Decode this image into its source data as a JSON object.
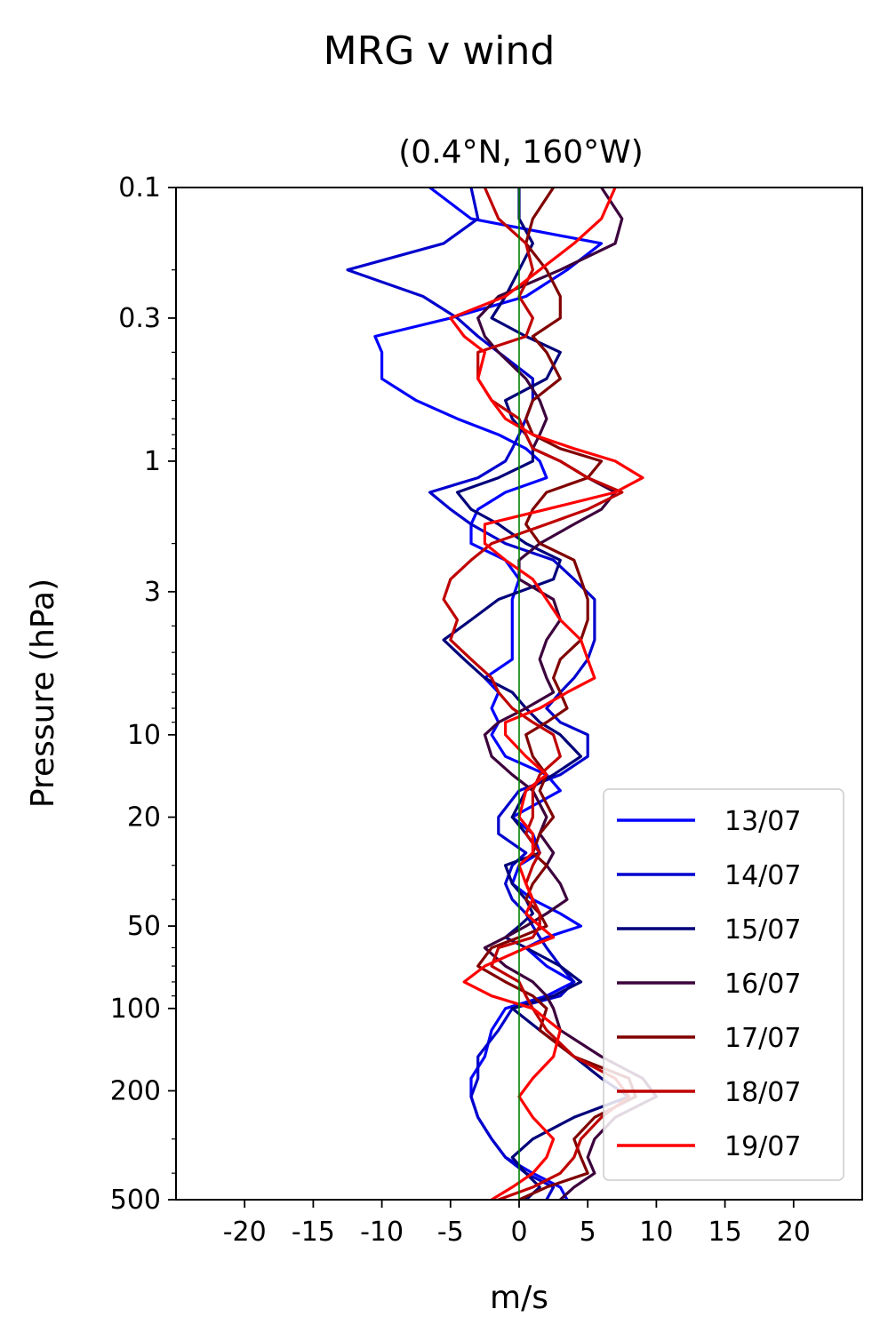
{
  "chart_data": {
    "type": "line",
    "suptitle": "MRG v wind",
    "title": "(0.4°N, 160°W)",
    "xlabel": "m/s",
    "ylabel": "Pressure (hPa)",
    "xlim": [
      -25,
      25
    ],
    "ylim": [
      500,
      0.1
    ],
    "yscale": "log",
    "xticks": [
      -20,
      -15,
      -10,
      -5,
      0,
      5,
      10,
      15,
      20
    ],
    "xtick_labels": [
      "-20",
      "-15",
      "-10",
      "-5",
      "0",
      "5",
      "10",
      "15",
      "20"
    ],
    "yticks": [
      0.1,
      0.3,
      1,
      3,
      10,
      20,
      50,
      100,
      200,
      500
    ],
    "ytick_labels": [
      "0.1",
      "0.3",
      "1",
      "3",
      "10",
      "20",
      "50",
      "100",
      "200",
      "500"
    ],
    "zero_line_color": "#008000",
    "grid": false,
    "legend_position": "lower-right",
    "series": [
      {
        "name": "13/07",
        "color": "#0000ff",
        "p": [
          0.1,
          0.13,
          0.16,
          0.2,
          0.25,
          0.3,
          0.35,
          0.4,
          0.5,
          0.6,
          0.7,
          0.8,
          0.9,
          1.0,
          1.15,
          1.3,
          1.5,
          1.7,
          2.0,
          2.3,
          2.7,
          3.2,
          3.8,
          4.5,
          5.3,
          6.2,
          7.0,
          8.0,
          9.0,
          10.0,
          12.0,
          14.0,
          16.0,
          20.0,
          23.0,
          27.0,
          30.0,
          35.0,
          40.0,
          45.0,
          50.0,
          55.0,
          60.0,
          70.0,
          80.0,
          90.0,
          100.0,
          120.0,
          150.0,
          180.0,
          210.0,
          250.0,
          300.0,
          350.0,
          400.0,
          450.0,
          500.0
        ],
        "v": [
          -6.5,
          -3.5,
          6.0,
          3.5,
          0.5,
          -5.0,
          -10.5,
          -10.0,
          -10.0,
          -7.5,
          -4.5,
          -1.5,
          0.5,
          1.5,
          2.0,
          -1.0,
          -3.0,
          -3.5,
          -3.5,
          -1.0,
          0.0,
          -0.5,
          -0.5,
          -0.5,
          -0.5,
          -2.5,
          -1.5,
          -2.0,
          -1.5,
          -2.0,
          -1.0,
          2.0,
          3.0,
          -0.5,
          1.0,
          1.5,
          0.0,
          -0.5,
          1.0,
          3.0,
          4.5,
          2.0,
          0.5,
          2.0,
          4.0,
          2.0,
          -1.0,
          -2.0,
          -2.5,
          -3.5,
          -3.5,
          -3.0,
          -2.0,
          -1.0,
          1.0,
          3.0,
          3.5
        ]
      },
      {
        "name": "14/07",
        "color": "#0000cd",
        "p": [
          0.1,
          0.13,
          0.16,
          0.2,
          0.25,
          0.3,
          0.35,
          0.4,
          0.5,
          0.6,
          0.7,
          0.8,
          0.9,
          1.0,
          1.15,
          1.3,
          1.5,
          1.7,
          2.0,
          2.3,
          2.7,
          3.2,
          3.8,
          4.5,
          5.3,
          6.2,
          7.0,
          8.0,
          9.0,
          10.0,
          12.0,
          14.0,
          16.0,
          20.0,
          23.0,
          27.0,
          30.0,
          35.0,
          40.0,
          45.0,
          50.0,
          55.0,
          60.0,
          70.0,
          80.0,
          90.0,
          100.0,
          120.0,
          150.0,
          180.0,
          210.0,
          250.0,
          300.0,
          350.0,
          400.0,
          450.0,
          500.0
        ],
        "v": [
          -3.5,
          -3.0,
          -5.5,
          -12.5,
          -7.0,
          -4.5,
          -3.0,
          -1.5,
          1.0,
          1.0,
          0.5,
          0.0,
          -0.5,
          -1.0,
          -3.0,
          -6.5,
          -5.0,
          -3.5,
          -1.0,
          2.5,
          4.0,
          5.5,
          5.5,
          5.5,
          5.0,
          4.0,
          3.0,
          2.0,
          3.0,
          5.0,
          5.0,
          3.0,
          0.0,
          -1.5,
          -1.5,
          0.5,
          -0.5,
          -1.0,
          -0.5,
          0.5,
          1.0,
          1.5,
          2.0,
          3.0,
          4.0,
          3.0,
          -0.5,
          -1.5,
          -3.0,
          -3.0,
          -3.5,
          -3.0,
          -2.0,
          -1.0,
          0.5,
          2.5,
          2.0
        ]
      },
      {
        "name": "15/07",
        "color": "#00007a",
        "p": [
          0.1,
          0.13,
          0.16,
          0.2,
          0.25,
          0.3,
          0.35,
          0.4,
          0.5,
          0.6,
          0.7,
          0.8,
          0.9,
          1.0,
          1.15,
          1.3,
          1.5,
          1.7,
          2.0,
          2.3,
          2.7,
          3.2,
          3.8,
          4.5,
          5.3,
          6.2,
          7.0,
          8.0,
          9.0,
          10.0,
          12.0,
          14.0,
          16.0,
          20.0,
          23.0,
          27.0,
          30.0,
          35.0,
          40.0,
          45.0,
          50.0,
          55.0,
          60.0,
          70.0,
          80.0,
          90.0,
          100.0,
          120.0,
          150.0,
          180.0,
          210.0,
          250.0,
          300.0,
          350.0,
          400.0,
          450.0,
          500.0
        ],
        "v": [
          0.0,
          0.0,
          1.0,
          0.0,
          -1.0,
          -2.0,
          0.5,
          3.0,
          2.0,
          -1.0,
          -0.5,
          0.5,
          1.0,
          1.0,
          -1.5,
          -4.5,
          -3.5,
          -1.5,
          0.5,
          3.0,
          2.5,
          -1.5,
          -3.5,
          -5.5,
          -4.0,
          -2.5,
          -0.5,
          0.5,
          1.5,
          3.0,
          4.5,
          2.5,
          0.5,
          -0.5,
          0.5,
          1.5,
          -1.0,
          -0.5,
          0.5,
          1.0,
          0.0,
          -1.0,
          0.5,
          3.0,
          4.5,
          2.5,
          -0.5,
          1.5,
          4.0,
          6.0,
          8.0,
          4.0,
          1.0,
          -0.5,
          0.5,
          1.5,
          0.5
        ]
      },
      {
        "name": "16/07",
        "color": "#3c003c",
        "p": [
          0.1,
          0.13,
          0.16,
          0.2,
          0.25,
          0.3,
          0.35,
          0.4,
          0.5,
          0.6,
          0.7,
          0.8,
          0.9,
          1.0,
          1.15,
          1.3,
          1.5,
          1.7,
          2.0,
          2.3,
          2.7,
          3.2,
          3.8,
          4.5,
          5.3,
          6.2,
          7.0,
          8.0,
          9.0,
          10.0,
          12.0,
          14.0,
          16.0,
          20.0,
          23.0,
          27.0,
          30.0,
          35.0,
          40.0,
          45.0,
          50.0,
          55.0,
          60.0,
          70.0,
          80.0,
          90.0,
          100.0,
          120.0,
          150.0,
          180.0,
          210.0,
          250.0,
          300.0,
          350.0,
          400.0,
          450.0,
          500.0
        ],
        "v": [
          6.0,
          7.5,
          7.0,
          3.0,
          -1.5,
          -3.0,
          -2.5,
          -1.5,
          0.5,
          1.5,
          2.0,
          1.5,
          1.0,
          3.0,
          5.0,
          7.0,
          6.0,
          4.0,
          1.5,
          0.0,
          0.0,
          2.5,
          3.0,
          2.0,
          1.5,
          2.0,
          2.5,
          0.5,
          -1.5,
          -2.5,
          -2.0,
          -0.5,
          1.0,
          2.0,
          1.5,
          2.5,
          2.0,
          3.0,
          3.5,
          2.0,
          0.5,
          -1.0,
          -2.5,
          -1.0,
          1.0,
          2.0,
          2.5,
          3.0,
          6.0,
          9.0,
          10.0,
          7.0,
          5.5,
          5.0,
          5.5,
          4.0,
          3.0
        ]
      },
      {
        "name": "17/07",
        "color": "#800000",
        "p": [
          0.1,
          0.13,
          0.16,
          0.2,
          0.25,
          0.3,
          0.35,
          0.4,
          0.5,
          0.6,
          0.7,
          0.8,
          0.9,
          1.0,
          1.15,
          1.3,
          1.5,
          1.7,
          2.0,
          2.3,
          2.7,
          3.2,
          3.8,
          4.5,
          5.3,
          6.2,
          7.0,
          8.0,
          9.0,
          10.0,
          12.0,
          14.0,
          16.0,
          20.0,
          23.0,
          27.0,
          30.0,
          35.0,
          40.0,
          45.0,
          50.0,
          55.0,
          60.0,
          70.0,
          80.0,
          90.0,
          100.0,
          120.0,
          150.0,
          180.0,
          210.0,
          250.0,
          300.0,
          350.0,
          400.0,
          450.0,
          500.0
        ],
        "v": [
          2.5,
          1.0,
          0.5,
          2.0,
          3.0,
          3.0,
          1.0,
          2.0,
          3.0,
          1.0,
          0.5,
          1.0,
          3.0,
          6.0,
          5.0,
          2.0,
          1.0,
          0.5,
          1.5,
          4.0,
          4.5,
          5.0,
          5.0,
          4.5,
          3.0,
          2.5,
          3.0,
          3.5,
          2.0,
          0.5,
          1.0,
          2.0,
          1.5,
          2.5,
          1.5,
          1.0,
          2.0,
          1.0,
          0.5,
          1.5,
          2.0,
          0.0,
          -2.0,
          -3.0,
          -1.0,
          1.0,
          2.0,
          1.5,
          4.0,
          8.0,
          8.5,
          5.5,
          4.0,
          4.5,
          5.0,
          2.0,
          0.0
        ]
      },
      {
        "name": "18/07",
        "color": "#c00000",
        "p": [
          0.1,
          0.13,
          0.16,
          0.2,
          0.25,
          0.3,
          0.35,
          0.4,
          0.5,
          0.6,
          0.7,
          0.8,
          0.9,
          1.0,
          1.15,
          1.3,
          1.5,
          1.7,
          2.0,
          2.3,
          2.7,
          3.2,
          3.8,
          4.5,
          5.3,
          6.2,
          7.0,
          8.0,
          9.0,
          10.0,
          12.0,
          14.0,
          16.0,
          20.0,
          23.0,
          27.0,
          30.0,
          35.0,
          40.0,
          45.0,
          50.0,
          55.0,
          60.0,
          70.0,
          80.0,
          90.0,
          100.0,
          120.0,
          150.0,
          180.0,
          210.0,
          250.0,
          300.0,
          350.0,
          400.0,
          450.0,
          500.0
        ],
        "v": [
          -2.5,
          -1.5,
          0.5,
          1.0,
          0.0,
          1.0,
          0.5,
          -3.0,
          -3.0,
          -2.0,
          0.0,
          0.5,
          1.0,
          3.0,
          5.0,
          7.5,
          5.0,
          2.0,
          -2.0,
          -3.5,
          -5.0,
          -5.5,
          -4.5,
          -5.0,
          -3.5,
          -2.0,
          -1.5,
          -0.5,
          1.0,
          2.5,
          3.0,
          1.5,
          1.0,
          1.0,
          0.5,
          1.5,
          1.0,
          0.5,
          1.0,
          1.5,
          1.5,
          1.0,
          -1.5,
          -2.0,
          0.0,
          0.5,
          1.0,
          2.0,
          4.0,
          7.0,
          8.0,
          6.0,
          4.5,
          4.0,
          3.0,
          1.0,
          -1.5
        ]
      },
      {
        "name": "19/07",
        "color": "#ff0000",
        "p": [
          0.1,
          0.13,
          0.16,
          0.2,
          0.25,
          0.3,
          0.35,
          0.4,
          0.5,
          0.6,
          0.7,
          0.8,
          0.9,
          1.0,
          1.15,
          1.3,
          1.5,
          1.7,
          2.0,
          2.3,
          2.7,
          3.2,
          3.8,
          4.5,
          5.3,
          6.2,
          7.0,
          8.0,
          9.0,
          10.0,
          12.0,
          14.0,
          16.0,
          20.0,
          23.0,
          27.0,
          30.0,
          35.0,
          40.0,
          45.0,
          50.0,
          55.0,
          60.0,
          70.0,
          80.0,
          90.0,
          100.0,
          120.0,
          150.0,
          180.0,
          210.0,
          250.0,
          300.0,
          350.0,
          400.0,
          450.0,
          500.0
        ],
        "v": [
          7.0,
          6.0,
          4.0,
          1.5,
          -1.0,
          -5.0,
          -4.0,
          -2.5,
          -3.0,
          -2.0,
          -1.0,
          1.0,
          4.0,
          7.0,
          9.0,
          7.0,
          2.0,
          -2.5,
          -2.5,
          -1.0,
          1.0,
          2.0,
          3.0,
          4.5,
          5.0,
          5.5,
          3.5,
          1.5,
          -1.0,
          -1.0,
          0.5,
          2.0,
          0.5,
          0.0,
          1.0,
          1.0,
          0.0,
          0.5,
          1.0,
          0.5,
          1.5,
          2.5,
          0.5,
          -2.5,
          -4.0,
          -2.0,
          1.0,
          3.0,
          2.5,
          1.0,
          0.0,
          1.0,
          2.5,
          2.0,
          1.0,
          -0.5,
          -2.0
        ]
      }
    ]
  }
}
